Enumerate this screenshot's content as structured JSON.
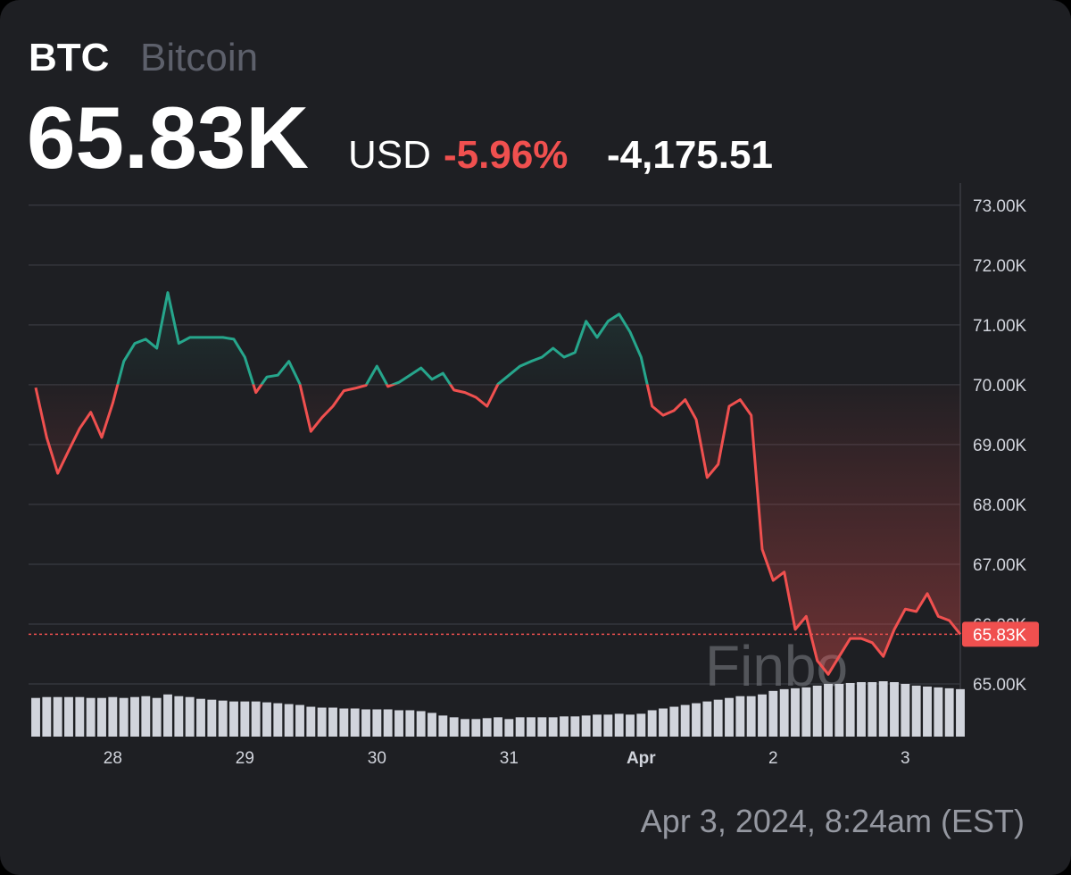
{
  "chart_data": {
    "type": "line",
    "title": "BTC",
    "subtitle": "Bitcoin",
    "price": {
      "value": 65830,
      "label": "65.83K"
    },
    "currency": "USD",
    "change_percent": {
      "value": -5.96,
      "label": "-5.96%"
    },
    "change": {
      "value": -4175.51,
      "label": "-4,175.51"
    },
    "watermark": "Finbo",
    "timestamp": "Apr 3, 2024, 8:24am (EST)",
    "up_color": "#26a68c",
    "down_color": "#f0504f",
    "volume_color": "#d1d4dc",
    "grid": true,
    "ylim": [
      64120,
      73370
    ],
    "yticks": [
      {
        "value": 65000,
        "label": "65.00K"
      },
      {
        "value": 66000,
        "label": "66.00K"
      },
      {
        "value": 67000,
        "label": "67.00K"
      },
      {
        "value": 68000,
        "label": "68.00K"
      },
      {
        "value": 69000,
        "label": "69.00K"
      },
      {
        "value": 70000,
        "label": "70.00K"
      },
      {
        "value": 71000,
        "label": "71.00K"
      },
      {
        "value": 72000,
        "label": "72.00K"
      },
      {
        "value": 73000,
        "label": "73.00K"
      }
    ],
    "categories": [
      null,
      null,
      null,
      null,
      null,
      null,
      null,
      "28",
      null,
      null,
      null,
      null,
      null,
      null,
      null,
      null,
      null,
      null,
      null,
      "29",
      null,
      null,
      null,
      null,
      null,
      null,
      null,
      null,
      null,
      null,
      null,
      "30",
      null,
      null,
      null,
      null,
      null,
      null,
      null,
      null,
      null,
      null,
      null,
      "31",
      null,
      null,
      null,
      null,
      null,
      null,
      null,
      null,
      null,
      null,
      null,
      "Apr",
      null,
      null,
      null,
      null,
      null,
      null,
      null,
      null,
      null,
      null,
      null,
      "2",
      null,
      null,
      null,
      null,
      null,
      null,
      null,
      null,
      null,
      null,
      null,
      "3",
      null,
      null,
      null,
      null,
      null
    ],
    "values": [
      69950,
      69120,
      68520,
      68900,
      69270,
      69540,
      69120,
      69690,
      70390,
      70690,
      70760,
      70610,
      71540,
      70690,
      70790,
      70790,
      70790,
      70790,
      70760,
      70460,
      69870,
      70130,
      70160,
      70390,
      70010,
      69220,
      69450,
      69640,
      69900,
      69940,
      69990,
      70310,
      69970,
      70040,
      70160,
      70280,
      70090,
      70190,
      69910,
      69870,
      69790,
      69640,
      70010,
      70160,
      70310,
      70390,
      70460,
      70610,
      70460,
      70540,
      71060,
      70790,
      71060,
      71180,
      70880,
      70460,
      69640,
      69490,
      69570,
      69750,
      69420,
      68450,
      68670,
      69640,
      69750,
      69490,
      67250,
      66730,
      66870,
      65910,
      66130,
      65390,
      65160,
      65460,
      65760,
      65760,
      65690,
      65460,
      65910,
      66250,
      66210,
      66510,
      66130,
      66060,
      65830
    ],
    "volume": [
      44,
      45,
      45,
      45,
      45,
      44,
      44,
      45,
      44,
      45,
      46,
      44,
      48,
      46,
      45,
      43,
      42,
      41,
      40,
      40,
      40,
      39,
      38,
      37,
      36,
      34,
      33,
      33,
      32,
      32,
      31,
      31,
      31,
      30,
      30,
      29,
      27,
      24,
      22,
      20,
      20,
      21,
      22,
      20,
      22,
      22,
      22,
      22,
      23,
      23,
      24,
      25,
      25,
      26,
      25,
      26,
      30,
      32,
      34,
      36,
      38,
      40,
      42,
      44,
      46,
      46,
      48,
      52,
      54,
      55,
      56,
      58,
      60,
      60,
      61,
      62,
      62,
      63,
      62,
      60,
      58,
      57,
      56,
      55,
      54
    ]
  }
}
